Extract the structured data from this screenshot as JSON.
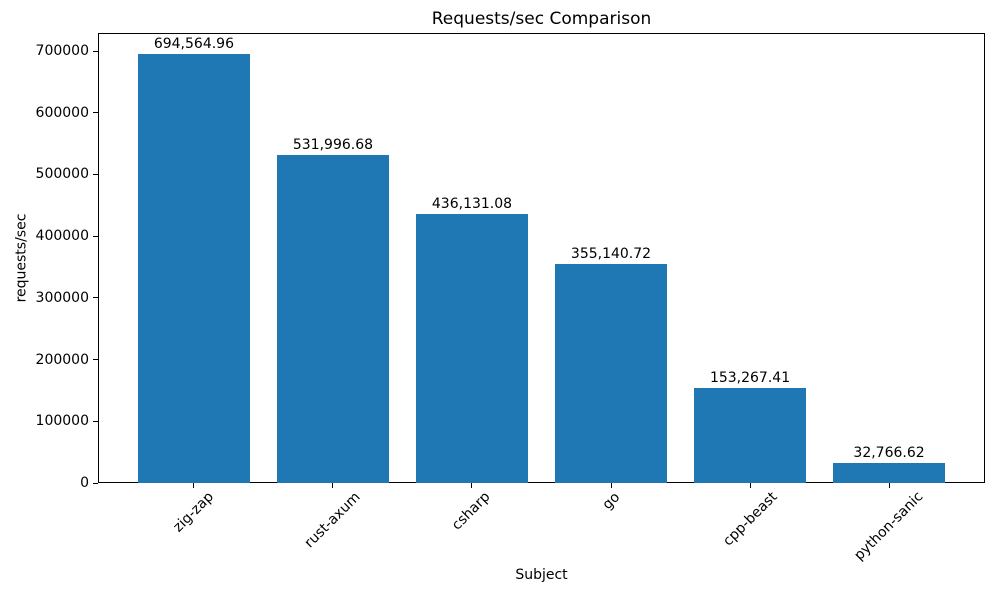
{
  "chart_data": {
    "type": "bar",
    "title": "Requests/sec Comparison",
    "xlabel": "Subject",
    "ylabel": "requests/sec",
    "categories": [
      "zig-zap",
      "rust-axum",
      "csharp",
      "go",
      "cpp-beast",
      "python-sanic"
    ],
    "values": [
      694564.96,
      531996.68,
      436131.08,
      355140.72,
      153267.41,
      32766.62
    ],
    "value_labels": [
      "694,564.96",
      "531,996.68",
      "436,131.08",
      "355,140.72",
      "153,267.41",
      "32,766.62"
    ],
    "y_ticks": [
      0,
      100000,
      200000,
      300000,
      400000,
      500000,
      600000,
      700000
    ],
    "y_tick_labels": [
      "0",
      "100000",
      "200000",
      "300000",
      "400000",
      "500000",
      "600000",
      "700000"
    ],
    "ylim": [
      0,
      729293
    ],
    "bar_color": "#1f77b4",
    "axis_color": "#000000",
    "text_color": "#000000",
    "background_color": "#ffffff",
    "grid": false,
    "legend_position": "none",
    "x_tick_rotation": 45
  }
}
